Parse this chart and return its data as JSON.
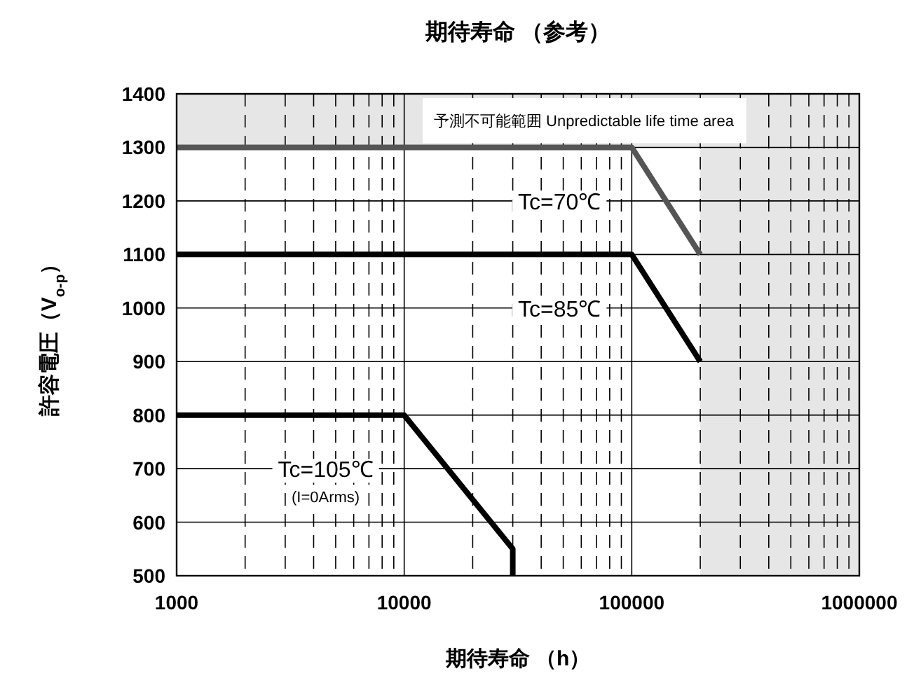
{
  "chart_data": {
    "type": "line",
    "title": "期待寿命 （参考）",
    "xlabel": "期待寿命 （h）",
    "ylabel": "許容電圧（V$_{o-p}$）",
    "log": "x",
    "grid": true,
    "line_style": "solid",
    "xlim": [
      1000,
      1000000
    ],
    "ylim": [
      500,
      1400
    ],
    "xticks": [
      1000,
      10000,
      100000,
      1000000
    ],
    "yticks": [
      500,
      600,
      700,
      800,
      900,
      1000,
      1100,
      1200,
      1300,
      1400
    ],
    "series": [
      {
        "name": "Tc=70℃",
        "color": "#555555",
        "x": [
          1000,
          100000,
          200000
        ],
        "values": [
          1300,
          1300,
          1100
        ]
      },
      {
        "name": "Tc=85℃",
        "color": "#000000",
        "x": [
          1000,
          100000,
          200000
        ],
        "values": [
          1100,
          1100,
          900
        ]
      },
      {
        "name": "Tc=105℃",
        "color": "#000000",
        "x": [
          1000,
          10000,
          30000,
          30000
        ],
        "values": [
          800,
          800,
          550,
          500
        ]
      }
    ],
    "bands": [
      {
        "axis": "y",
        "from": 1300,
        "to": 1400,
        "label": "予測不可能範囲  Unpredictable life time area",
        "color": "#e6e6e6"
      },
      {
        "axis": "x",
        "from": 200000,
        "to": 1000000,
        "color": "#e6e6e6"
      }
    ],
    "annotations": [
      "(I=0Arms)"
    ]
  }
}
